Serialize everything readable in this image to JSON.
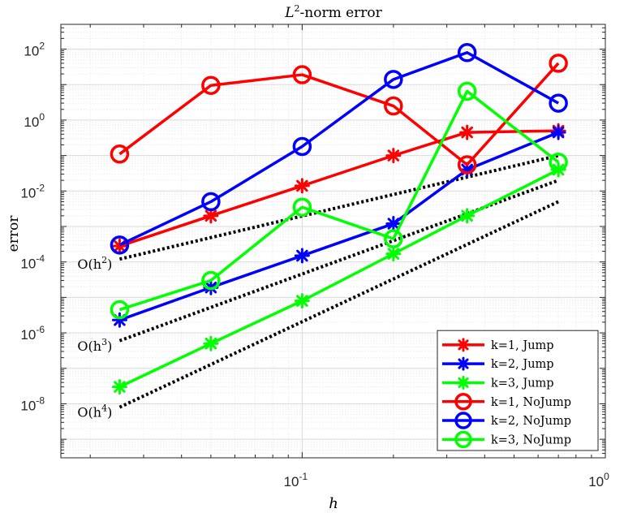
{
  "chart_data": {
    "type": "line",
    "title": "L²-norm error",
    "xlabel": "h",
    "ylabel": "error",
    "xscale": "log",
    "yscale": "log",
    "xlim": [
      0.016,
      1
    ],
    "ylim": [
      3e-10,
      500
    ],
    "grid": true,
    "legend_position": "bottom-right",
    "x_ticks": [
      {
        "value": 0.1,
        "base": "10",
        "exp": "-1"
      },
      {
        "value": 1,
        "base": "10",
        "exp": "0"
      }
    ],
    "y_ticks": [
      {
        "value": 1e-08,
        "base": "10",
        "exp": "-8"
      },
      {
        "value": 1e-06,
        "base": "10",
        "exp": "-6"
      },
      {
        "value": 0.0001,
        "base": "10",
        "exp": "-4"
      },
      {
        "value": 0.01,
        "base": "10",
        "exp": "-2"
      },
      {
        "value": 1,
        "base": "10",
        "exp": "0"
      },
      {
        "value": 100,
        "base": "10",
        "exp": "2"
      }
    ],
    "x": [
      0.025,
      0.05,
      0.1,
      0.2,
      0.35,
      0.7
    ],
    "series": [
      {
        "name": "k=1, Jump",
        "color": "#ff0000",
        "marker": "asterisk",
        "values": [
          0.00028,
          0.002,
          0.014,
          0.1,
          0.45,
          0.5
        ]
      },
      {
        "name": "k=2, Jump",
        "color": "#0000ff",
        "marker": "asterisk",
        "values": [
          2.3e-06,
          1.9e-05,
          0.00015,
          0.0012,
          0.04,
          0.45
        ]
      },
      {
        "name": "k=3, Jump",
        "color": "#00ff00",
        "marker": "asterisk",
        "values": [
          3e-08,
          5e-07,
          8e-06,
          0.00017,
          0.002,
          0.04
        ]
      },
      {
        "name": "k=1, NoJump",
        "color": "#ff0000",
        "marker": "circle",
        "values": [
          0.11,
          9.5,
          19,
          2.5,
          0.055,
          40
        ]
      },
      {
        "name": "k=2, NoJump",
        "color": "#0000ff",
        "marker": "circle",
        "values": [
          0.0003,
          0.005,
          0.18,
          14,
          80,
          3
        ]
      },
      {
        "name": "k=3, NoJump",
        "color": "#00ff00",
        "marker": "circle",
        "values": [
          4.5e-06,
          3e-05,
          0.0035,
          0.00045,
          6.5,
          0.065
        ]
      }
    ],
    "reference_lines": [
      {
        "label": "O(h",
        "power": "2",
        "x": [
          0.025,
          0.7
        ],
        "values": [
          0.00012,
          0.1
        ]
      },
      {
        "label": "O(h",
        "power": "3",
        "x": [
          0.025,
          0.7
        ],
        "values": [
          6e-07,
          0.02
        ]
      },
      {
        "label": "O(h",
        "power": "4",
        "x": [
          0.025,
          0.7
        ],
        "values": [
          8e-09,
          0.005
        ]
      }
    ]
  }
}
